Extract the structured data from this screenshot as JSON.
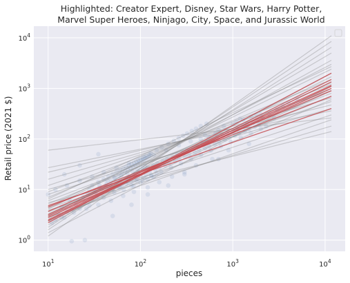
{
  "chart_data": {
    "type": "scatter",
    "title": "Highlighted: Creator Expert, Disney, Star Wars, Harry Potter, Marvel Super Heroes, Ninjago, City, Space, and Jurassic World",
    "title_lines": [
      "Highlighted: Creator Expert, Disney, Star Wars, Harry Potter,",
      "Marvel Super Heroes, Ninjago, City, Space, and Jurassic World"
    ],
    "xlabel": "pieces",
    "ylabel": "Retail price (2021 $)",
    "xscale": "log",
    "yscale": "log",
    "xlim": [
      7,
      16500
    ],
    "ylim": [
      0.6,
      17000
    ],
    "x_ticks": [
      {
        "base": "10",
        "exp": "1",
        "value": 10
      },
      {
        "base": "10",
        "exp": "2",
        "value": 100
      },
      {
        "base": "10",
        "exp": "3",
        "value": 1000
      },
      {
        "base": "10",
        "exp": "4",
        "value": 10000
      }
    ],
    "y_ticks": [
      {
        "base": "10",
        "exp": "0",
        "value": 1
      },
      {
        "base": "10",
        "exp": "1",
        "value": 10
      },
      {
        "base": "10",
        "exp": "2",
        "value": 100
      },
      {
        "base": "10",
        "exp": "3",
        "value": 1000
      },
      {
        "base": "10",
        "exp": "4",
        "value": 10000
      }
    ],
    "grid": true,
    "legend": "top-right",
    "colors": {
      "background": "#eaeaf2",
      "grid": "#ffffff",
      "points": "#4c72b0",
      "fit_lines": "#808080",
      "highlight_lines": "#c44e52"
    },
    "fit_x_range": [
      10,
      11700
    ],
    "highlighted_fits": [
      {
        "name": "Creator Expert",
        "y_at_10": 2.4,
        "y_at_11700": 1350
      },
      {
        "name": "Disney",
        "y_at_10": 3.2,
        "y_at_11700": 1150
      },
      {
        "name": "Star Wars",
        "y_at_10": 2.2,
        "y_at_11700": 2000
      },
      {
        "name": "Harry Potter",
        "y_at_10": 2.5,
        "y_at_11700": 1500
      },
      {
        "name": "Marvel Super Heroes",
        "y_at_10": 4.5,
        "y_at_11700": 700
      },
      {
        "name": "Ninjago",
        "y_at_10": 2.8,
        "y_at_11700": 1100
      },
      {
        "name": "City",
        "y_at_10": 3.7,
        "y_at_11700": 900
      },
      {
        "name": "Space",
        "y_at_10": 4.8,
        "y_at_11700": 400
      },
      {
        "name": "Jurassic World",
        "y_at_10": 3.0,
        "y_at_11700": 1000
      }
    ],
    "other_fits": [
      {
        "y_at_10": 60,
        "y_at_11700": 260
      },
      {
        "y_at_10": 27,
        "y_at_11700": 360
      },
      {
        "y_at_10": 22,
        "y_at_11700": 470
      },
      {
        "y_at_10": 16,
        "y_at_11700": 650
      },
      {
        "y_at_10": 12,
        "y_at_11700": 900
      },
      {
        "y_at_10": 9,
        "y_at_11700": 1200
      },
      {
        "y_at_10": 7,
        "y_at_11700": 1500
      },
      {
        "y_at_10": 6,
        "y_at_11700": 800
      },
      {
        "y_at_10": 5.2,
        "y_at_11700": 1000
      },
      {
        "y_at_10": 4.6,
        "y_at_11700": 2400
      },
      {
        "y_at_10": 4.1,
        "y_at_11700": 3000
      },
      {
        "y_at_10": 3.6,
        "y_at_11700": 700
      },
      {
        "y_at_10": 3.3,
        "y_at_11700": 1300
      },
      {
        "y_at_10": 2.9,
        "y_at_11700": 3600
      },
      {
        "y_at_10": 2.6,
        "y_at_11700": 5000
      },
      {
        "y_at_10": 2.3,
        "y_at_11700": 900
      },
      {
        "y_at_10": 2.0,
        "y_at_11700": 2000
      },
      {
        "y_at_10": 1.8,
        "y_at_11700": 6500
      },
      {
        "y_at_10": 1.6,
        "y_at_11700": 8500
      },
      {
        "y_at_10": 1.4,
        "y_at_11700": 1100
      },
      {
        "y_at_10": 1.2,
        "y_at_11700": 11000
      },
      {
        "y_at_10": 8,
        "y_at_11700": 550
      },
      {
        "y_at_10": 10,
        "y_at_11700": 400
      },
      {
        "y_at_10": 3.9,
        "y_at_11700": 180
      },
      {
        "y_at_10": 5.5,
        "y_at_11700": 140
      },
      {
        "y_at_10": 2.8,
        "y_at_11700": 240
      },
      {
        "y_at_10": 4.3,
        "y_at_11700": 300
      },
      {
        "y_at_10": 6.5,
        "y_at_11700": 2700
      },
      {
        "y_at_10": 3.1,
        "y_at_11700": 1700
      },
      {
        "y_at_10": 2.4,
        "y_at_11700": 600
      }
    ],
    "points": [
      [
        12,
        2.5
      ],
      [
        13,
        3.2
      ],
      [
        15,
        2.8
      ],
      [
        14,
        4.5
      ],
      [
        16,
        3.6
      ],
      [
        18,
        4.1
      ],
      [
        20,
        5.0
      ],
      [
        17,
        6.3
      ],
      [
        22,
        4.2
      ],
      [
        24,
        7.1
      ],
      [
        25,
        5.6
      ],
      [
        27,
        8.0
      ],
      [
        28,
        4.8
      ],
      [
        30,
        6.6
      ],
      [
        32,
        9.0
      ],
      [
        34,
        7.4
      ],
      [
        36,
        10.5
      ],
      [
        38,
        8.2
      ],
      [
        40,
        6.9
      ],
      [
        42,
        11.8
      ],
      [
        45,
        9.6
      ],
      [
        47,
        12.5
      ],
      [
        50,
        10.2
      ],
      [
        52,
        8.8
      ],
      [
        55,
        13.6
      ],
      [
        58,
        11.1
      ],
      [
        60,
        15.0
      ],
      [
        63,
        12.2
      ],
      [
        66,
        9.9
      ],
      [
        70,
        16.5
      ],
      [
        73,
        13.9
      ],
      [
        76,
        18.0
      ],
      [
        80,
        14.6
      ],
      [
        84,
        11.8
      ],
      [
        88,
        20.0
      ],
      [
        92,
        16.2
      ],
      [
        96,
        22.1
      ],
      [
        100,
        18.3
      ],
      [
        105,
        15.0
      ],
      [
        110,
        24.5
      ],
      [
        115,
        20.2
      ],
      [
        120,
        27.0
      ],
      [
        126,
        22.3
      ],
      [
        132,
        18.4
      ],
      [
        138,
        30.1
      ],
      [
        145,
        24.7
      ],
      [
        152,
        33.0
      ],
      [
        160,
        27.2
      ],
      [
        168,
        22.0
      ],
      [
        176,
        36.5
      ],
      [
        185,
        30.0
      ],
      [
        195,
        40.0
      ],
      [
        205,
        33.1
      ],
      [
        215,
        27.3
      ],
      [
        226,
        44.0
      ],
      [
        238,
        36.4
      ],
      [
        250,
        48.8
      ],
      [
        262,
        40.2
      ],
      [
        275,
        32.9
      ],
      [
        290,
        54.0
      ],
      [
        305,
        44.5
      ],
      [
        320,
        59.5
      ],
      [
        336,
        49.0
      ],
      [
        353,
        40.1
      ],
      [
        371,
        65.5
      ],
      [
        390,
        54.0
      ],
      [
        410,
        72.0
      ],
      [
        431,
        59.3
      ],
      [
        453,
        48.5
      ],
      [
        476,
        80.0
      ],
      [
        500,
        66.0
      ],
      [
        525,
        88.0
      ],
      [
        552,
        72.5
      ],
      [
        580,
        59.0
      ],
      [
        610,
        97.0
      ],
      [
        641,
        80.1
      ],
      [
        674,
        107
      ],
      [
        708,
        88.2
      ],
      [
        744,
        72.0
      ],
      [
        782,
        118
      ],
      [
        822,
        97.1
      ],
      [
        864,
        130
      ],
      [
        908,
        107
      ],
      [
        954,
        87.3
      ],
      [
        1003,
        143
      ],
      [
        1054,
        118
      ],
      [
        1108,
        158
      ],
      [
        1165,
        130
      ],
      [
        1224,
        106
      ],
      [
        1287,
        175
      ],
      [
        1353,
        144
      ],
      [
        1422,
        193
      ],
      [
        1495,
        159
      ],
      [
        1571,
        130
      ],
      [
        1652,
        213
      ],
      [
        1736,
        176
      ],
      [
        1825,
        235
      ],
      [
        1918,
        194
      ],
      [
        2016,
        158
      ],
      [
        2119,
        260
      ],
      [
        2500,
        300
      ],
      [
        3000,
        380
      ],
      [
        3500,
        450
      ],
      [
        4000,
        520
      ],
      [
        5000,
        600
      ],
      [
        2300,
        180
      ],
      [
        2800,
        260
      ],
      [
        1800,
        300
      ],
      [
        1500,
        80
      ],
      [
        1200,
        250
      ],
      [
        900,
        60
      ],
      [
        700,
        150
      ],
      [
        600,
        40
      ],
      [
        500,
        120
      ],
      [
        400,
        30
      ],
      [
        350,
        90
      ],
      [
        300,
        22
      ],
      [
        260,
        75
      ],
      [
        220,
        18
      ],
      [
        190,
        60
      ],
      [
        160,
        14
      ],
      [
        140,
        48
      ],
      [
        120,
        11
      ],
      [
        100,
        40
      ],
      [
        85,
        9
      ],
      [
        75,
        33
      ],
      [
        65,
        7.5
      ],
      [
        55,
        27
      ],
      [
        48,
        6
      ],
      [
        40,
        22
      ],
      [
        35,
        5
      ],
      [
        30,
        18
      ],
      [
        26,
        4.2
      ],
      [
        22,
        15
      ],
      [
        19,
        3.5
      ],
      [
        16,
        12
      ],
      [
        14,
        2.8
      ],
      [
        12,
        10
      ],
      [
        11,
        2.2
      ],
      [
        10,
        8
      ],
      [
        30,
        12
      ],
      [
        40,
        16
      ],
      [
        50,
        20
      ],
      [
        60,
        24
      ],
      [
        70,
        28
      ],
      [
        80,
        32
      ],
      [
        90,
        36
      ],
      [
        110,
        44
      ],
      [
        130,
        52
      ],
      [
        150,
        60
      ],
      [
        170,
        68
      ],
      [
        200,
        80
      ],
      [
        230,
        92
      ],
      [
        260,
        104
      ],
      [
        290,
        116
      ],
      [
        320,
        128
      ],
      [
        360,
        144
      ],
      [
        400,
        160
      ],
      [
        450,
        180
      ],
      [
        520,
        200
      ],
      [
        33,
        9
      ],
      [
        43,
        13
      ],
      [
        53,
        17
      ],
      [
        63,
        21
      ],
      [
        73,
        25
      ],
      [
        83,
        29
      ],
      [
        93,
        33
      ],
      [
        103,
        37
      ],
      [
        113,
        41
      ],
      [
        123,
        45
      ],
      [
        35,
        14
      ],
      [
        45,
        18
      ],
      [
        55,
        22
      ],
      [
        65,
        26
      ],
      [
        75,
        30
      ],
      [
        85,
        34
      ],
      [
        95,
        38
      ],
      [
        105,
        42
      ],
      [
        115,
        46
      ],
      [
        125,
        50
      ],
      [
        38,
        10.5
      ],
      [
        48,
        14.5
      ],
      [
        58,
        18.5
      ],
      [
        68,
        22.5
      ],
      [
        78,
        26.5
      ],
      [
        88,
        30.5
      ],
      [
        98,
        34.5
      ],
      [
        108,
        38.5
      ],
      [
        118,
        42.5
      ],
      [
        128,
        46.5
      ],
      [
        60,
        11
      ],
      [
        70,
        13
      ],
      [
        80,
        12
      ],
      [
        90,
        15
      ],
      [
        100,
        14
      ],
      [
        110,
        17
      ],
      [
        120,
        16
      ],
      [
        130,
        19
      ],
      [
        140,
        18
      ],
      [
        150,
        21
      ],
      [
        25,
        1.0
      ],
      [
        18,
        0.95
      ],
      [
        50,
        3
      ],
      [
        80,
        5
      ],
      [
        120,
        8
      ],
      [
        200,
        12
      ],
      [
        300,
        20
      ],
      [
        22,
        30
      ],
      [
        15,
        20
      ],
      [
        35,
        50
      ],
      [
        28,
        10
      ],
      [
        36,
        12
      ],
      [
        44,
        15
      ],
      [
        52,
        17
      ],
      [
        62,
        19
      ],
      [
        72,
        21
      ],
      [
        82,
        23
      ],
      [
        92,
        25
      ],
      [
        102,
        27
      ],
      [
        112,
        29
      ],
      [
        1000,
        200
      ],
      [
        800,
        180
      ],
      [
        650,
        130
      ],
      [
        550,
        110
      ],
      [
        450,
        100
      ],
      [
        1100,
        220
      ],
      [
        1300,
        240
      ],
      [
        1600,
        270
      ],
      [
        2000,
        310
      ],
      [
        700,
        40
      ]
    ]
  }
}
